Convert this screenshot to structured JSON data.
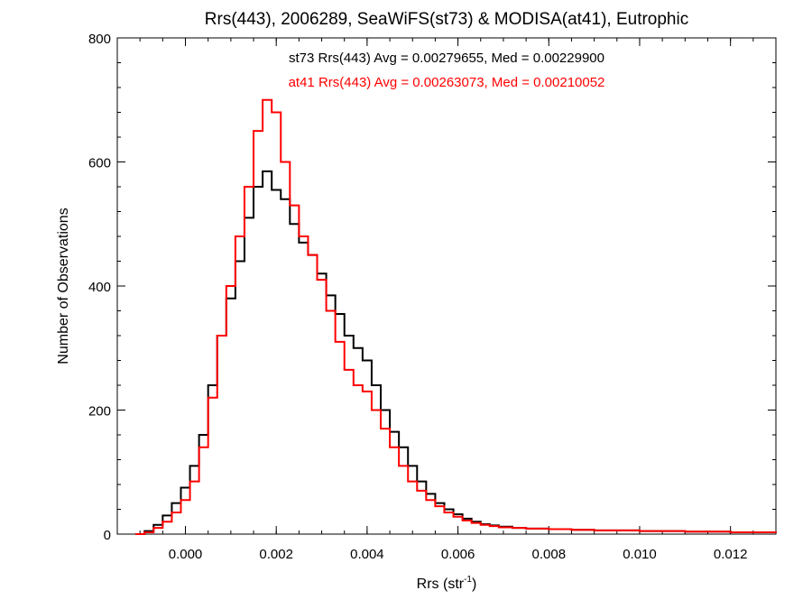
{
  "chart_data": {
    "type": "line",
    "step": true,
    "title": "Rrs(443), 2006289, SeaWiFS(st73) & MODISA(at41), Eutrophic",
    "xlabel": "Rrs (str",
    "xlabel_sup": "-1",
    "xlabel_suffix": ")",
    "ylabel": "Number of Observations",
    "xlim": [
      -0.0015,
      0.013
    ],
    "ylim": [
      0,
      800
    ],
    "xticks": [
      0.0,
      0.002,
      0.004,
      0.006,
      0.008,
      0.01,
      0.012
    ],
    "xtick_labels": [
      "0.000",
      "0.002",
      "0.004",
      "0.006",
      "0.008",
      "0.010",
      "0.012"
    ],
    "yticks": [
      0,
      200,
      400,
      600,
      800
    ],
    "ytick_labels": [
      "0",
      "200",
      "400",
      "600",
      "800"
    ],
    "grid": false,
    "annotations": [
      {
        "text": "st73 Rrs(443) Avg = 0.00279655, Med = 0.00229900",
        "color": "#000000"
      },
      {
        "text": "at41 Rrs(443) Avg = 0.00263073, Med = 0.00210052",
        "color": "#ff0000"
      }
    ],
    "series": [
      {
        "color": "#000000",
        "points": [
          [
            -0.0011,
            0
          ],
          [
            -0.0009,
            5
          ],
          [
            -0.0007,
            15
          ],
          [
            -0.0005,
            30
          ],
          [
            -0.0003,
            50
          ],
          [
            -0.0001,
            75
          ],
          [
            0.0001,
            110
          ],
          [
            0.0003,
            160
          ],
          [
            0.0005,
            240
          ],
          [
            0.0007,
            320
          ],
          [
            0.0009,
            380
          ],
          [
            0.0011,
            440
          ],
          [
            0.0013,
            510
          ],
          [
            0.0015,
            560
          ],
          [
            0.0017,
            585
          ],
          [
            0.0019,
            555
          ],
          [
            0.0021,
            540
          ],
          [
            0.0023,
            500
          ],
          [
            0.0025,
            470
          ],
          [
            0.0027,
            450
          ],
          [
            0.0029,
            420
          ],
          [
            0.0031,
            385
          ],
          [
            0.0033,
            355
          ],
          [
            0.0035,
            320
          ],
          [
            0.0037,
            300
          ],
          [
            0.0039,
            280
          ],
          [
            0.0041,
            240
          ],
          [
            0.0043,
            200
          ],
          [
            0.0045,
            165
          ],
          [
            0.0047,
            140
          ],
          [
            0.0049,
            110
          ],
          [
            0.0051,
            85
          ],
          [
            0.0053,
            65
          ],
          [
            0.0055,
            50
          ],
          [
            0.0057,
            40
          ],
          [
            0.0059,
            32
          ],
          [
            0.0061,
            25
          ],
          [
            0.0063,
            20
          ],
          [
            0.0065,
            16
          ],
          [
            0.0067,
            14
          ],
          [
            0.0069,
            12
          ],
          [
            0.0072,
            10
          ],
          [
            0.0075,
            9
          ],
          [
            0.008,
            8
          ],
          [
            0.0085,
            7
          ],
          [
            0.009,
            6
          ],
          [
            0.0095,
            6
          ],
          [
            0.01,
            5
          ],
          [
            0.0105,
            5
          ],
          [
            0.011,
            4
          ],
          [
            0.0115,
            4
          ],
          [
            0.012,
            3
          ],
          [
            0.0125,
            3
          ],
          [
            0.013,
            2
          ]
        ]
      },
      {
        "color": "#ff0000",
        "points": [
          [
            -0.0011,
            0
          ],
          [
            -0.0009,
            3
          ],
          [
            -0.0007,
            10
          ],
          [
            -0.0005,
            20
          ],
          [
            -0.0003,
            35
          ],
          [
            -0.0001,
            55
          ],
          [
            0.0001,
            85
          ],
          [
            0.0003,
            140
          ],
          [
            0.0005,
            220
          ],
          [
            0.0007,
            320
          ],
          [
            0.0009,
            400
          ],
          [
            0.0011,
            480
          ],
          [
            0.0013,
            560
          ],
          [
            0.0015,
            650
          ],
          [
            0.0017,
            700
          ],
          [
            0.0019,
            680
          ],
          [
            0.0021,
            600
          ],
          [
            0.0023,
            530
          ],
          [
            0.0025,
            480
          ],
          [
            0.0027,
            450
          ],
          [
            0.0029,
            410
          ],
          [
            0.0031,
            360
          ],
          [
            0.0033,
            310
          ],
          [
            0.0035,
            265
          ],
          [
            0.0037,
            240
          ],
          [
            0.0039,
            230
          ],
          [
            0.0041,
            200
          ],
          [
            0.0043,
            170
          ],
          [
            0.0045,
            140
          ],
          [
            0.0047,
            110
          ],
          [
            0.0049,
            85
          ],
          [
            0.0051,
            70
          ],
          [
            0.0053,
            55
          ],
          [
            0.0055,
            45
          ],
          [
            0.0057,
            35
          ],
          [
            0.0059,
            28
          ],
          [
            0.0061,
            22
          ],
          [
            0.0063,
            18
          ],
          [
            0.0065,
            15
          ],
          [
            0.0067,
            13
          ],
          [
            0.0069,
            11
          ],
          [
            0.0072,
            10
          ],
          [
            0.0075,
            9
          ],
          [
            0.008,
            8
          ],
          [
            0.0085,
            7
          ],
          [
            0.009,
            6
          ],
          [
            0.0095,
            6
          ],
          [
            0.01,
            5
          ],
          [
            0.0105,
            5
          ],
          [
            0.011,
            4
          ],
          [
            0.0115,
            4
          ],
          [
            0.012,
            3
          ],
          [
            0.0125,
            3
          ],
          [
            0.013,
            2
          ]
        ]
      }
    ]
  }
}
